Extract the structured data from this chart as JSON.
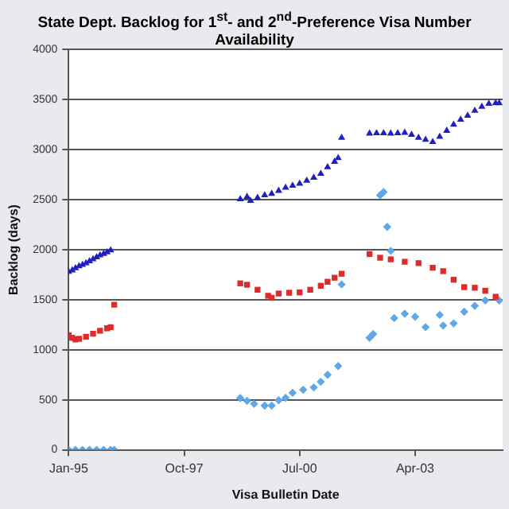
{
  "chart_data": {
    "type": "scatter",
    "title": "State Dept. Backlog for 1$^{st}$- and 2$^{nd}$-Preference Visa Number Availability",
    "xlabel": "Visa Bulletin Date",
    "ylabel": "Backlog (days)",
    "xlim": [
      "1995-01",
      "2005-05"
    ],
    "xticks": [
      {
        "value": "1995-01",
        "label": "Jan-95"
      },
      {
        "value": "1997-10",
        "label": "Oct-97"
      },
      {
        "value": "2000-07",
        "label": "Jul-00"
      },
      {
        "value": "2003-04",
        "label": "Apr-03"
      }
    ],
    "ylim": [
      0,
      4000
    ],
    "yticks": [
      0,
      500,
      1000,
      1500,
      2000,
      2500,
      3000,
      3500,
      4000
    ],
    "grid": "y",
    "legend": false,
    "series": [
      {
        "color": "#2020c0",
        "marker": "triangle",
        "x": [
          "1995-01",
          "1995-02",
          "1995-03",
          "1995-04",
          "1995-05",
          "1995-06",
          "1995-07",
          "1995-08",
          "1995-09",
          "1995-10",
          "1995-11",
          "1995-12",
          "1996-01",
          "1999-02",
          "1999-04",
          "1999-05",
          "1999-07",
          "1999-09",
          "1999-11",
          "2000-01",
          "2000-03",
          "2000-05",
          "2000-07",
          "2000-09",
          "2000-11",
          "2001-01",
          "2001-03",
          "2001-05",
          "2001-06",
          "2001-07",
          "2002-03",
          "2002-05",
          "2002-07",
          "2002-09",
          "2002-11",
          "2003-01",
          "2003-03",
          "2003-05",
          "2003-07",
          "2003-09",
          "2003-11",
          "2004-01",
          "2004-03",
          "2004-05",
          "2004-07",
          "2004-09",
          "2004-11",
          "2005-01",
          "2005-03",
          "2005-04"
        ],
        "values": [
          1780,
          1795,
          1815,
          1835,
          1850,
          1865,
          1885,
          1905,
          1925,
          1945,
          1960,
          1975,
          1995,
          2505,
          2530,
          2490,
          2520,
          2545,
          2560,
          2590,
          2620,
          2640,
          2660,
          2690,
          2720,
          2760,
          2826,
          2880,
          2917,
          3120,
          3162,
          3165,
          3165,
          3162,
          3165,
          3170,
          3150,
          3120,
          3100,
          3077,
          3130,
          3190,
          3250,
          3300,
          3340,
          3390,
          3430,
          3460,
          3466,
          3466
        ]
      },
      {
        "color": "#dd2b2b",
        "marker": "square",
        "x": [
          "1995-01",
          "1995-02",
          "1995-03",
          "1995-04",
          "1995-06",
          "1995-08",
          "1995-10",
          "1995-12",
          "1996-01",
          "1996-02",
          "1999-02",
          "1999-04",
          "1999-07",
          "1999-10",
          "1999-11",
          "2000-01",
          "2000-04",
          "2000-07",
          "2000-10",
          "2001-01",
          "2001-03",
          "2001-05",
          "2001-07",
          "2002-03",
          "2002-06",
          "2002-09",
          "2003-01",
          "2003-05",
          "2003-09",
          "2003-12",
          "2004-03",
          "2004-06",
          "2004-09",
          "2004-12",
          "2005-03"
        ],
        "values": [
          1146,
          1120,
          1104,
          1110,
          1130,
          1160,
          1190,
          1215,
          1226,
          1450,
          1664,
          1650,
          1600,
          1540,
          1520,
          1562,
          1570,
          1573,
          1600,
          1640,
          1680,
          1720,
          1760,
          1957,
          1920,
          1904,
          1880,
          1866,
          1820,
          1786,
          1700,
          1626,
          1620,
          1590,
          1530
        ]
      },
      {
        "color": "#5fa8e8",
        "marker": "diamond",
        "x": [
          "1995-01",
          "1995-03",
          "1995-05",
          "1995-07",
          "1995-09",
          "1995-11",
          "1996-01",
          "1996-02",
          "1999-02",
          "1999-04",
          "1999-06",
          "1999-09",
          "1999-11",
          "2000-01",
          "2000-03",
          "2000-05",
          "2000-08",
          "2000-11",
          "2001-01",
          "2001-03",
          "2001-06",
          "2001-07",
          "2002-03",
          "2002-04",
          "2002-06",
          "2002-07",
          "2002-08",
          "2002-09",
          "2002-10",
          "2003-01",
          "2003-04",
          "2003-07",
          "2003-11",
          "2003-12",
          "2004-03",
          "2004-06",
          "2004-09",
          "2004-12",
          "2005-04"
        ],
        "values": [
          0,
          0,
          0,
          0,
          0,
          0,
          0,
          0,
          517,
          490,
          460,
          442,
          442,
          496,
          520,
          570,
          600,
          624,
          680,
          750,
          837,
          1653,
          1120,
          1157,
          2544,
          2576,
          2229,
          1989,
          1317,
          1360,
          1330,
          1226,
          1349,
          1242,
          1264,
          1380,
          1440,
          1493,
          1493
        ]
      }
    ]
  }
}
